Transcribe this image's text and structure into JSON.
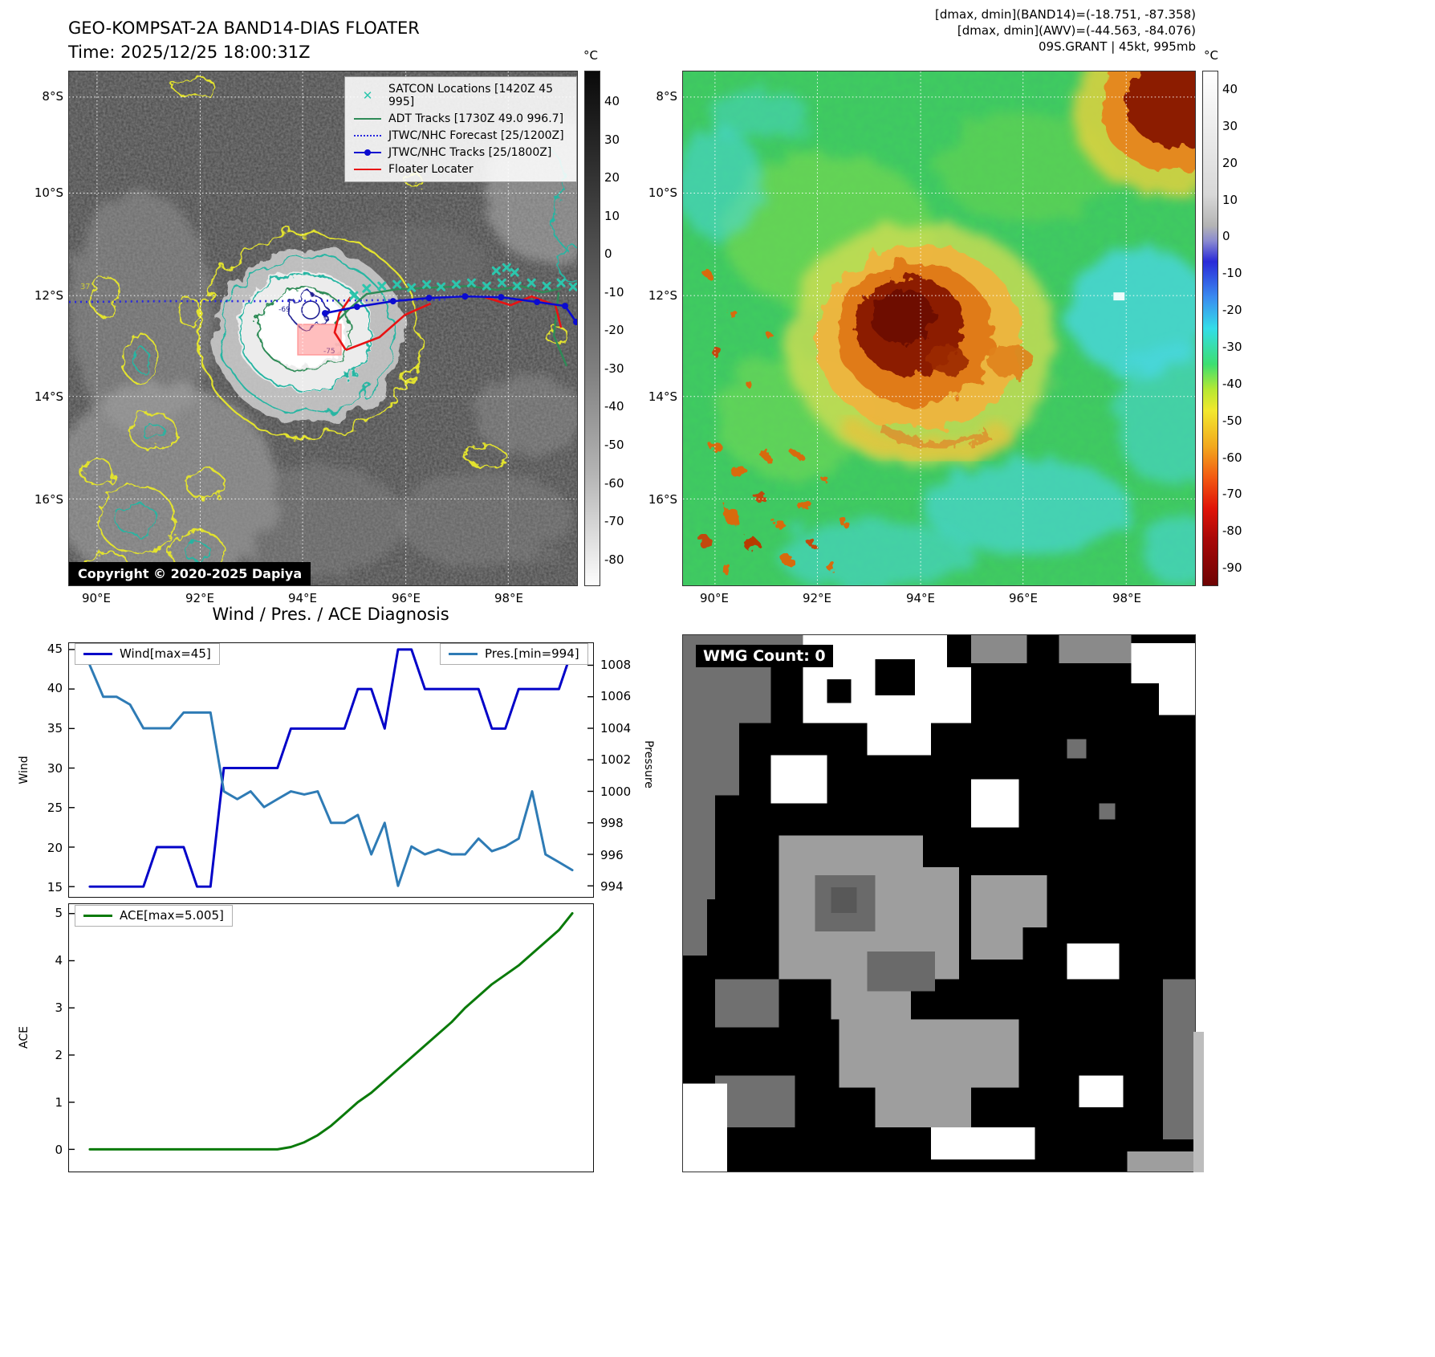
{
  "band14_panel": {
    "title_line1": "GEO-KOMPSAT-2A BAND14-DIAS FLOATER",
    "title_line2": "Time: 2025/12/25 18:00:31Z",
    "copyright": "Copyright © 2020-2025 Dapiya",
    "colorbar_unit": "°C",
    "colorbar_ticks": [
      40,
      30,
      20,
      10,
      0,
      -10,
      -20,
      -30,
      -40,
      -50,
      -60,
      -70,
      -80
    ],
    "lat_ticks": [
      "8°S",
      "10°S",
      "12°S",
      "14°S",
      "16°S"
    ],
    "lon_ticks": [
      "90°E",
      "92°E",
      "94°E",
      "96°E",
      "98°E"
    ],
    "legend_items": [
      {
        "label": "SATCON Locations [1420Z 45 995]",
        "color": "#2cc6ad",
        "style": "x-marker"
      },
      {
        "label": "ADT Tracks [1730Z 49.0 996.7]",
        "color": "#2e8b57",
        "style": "solid"
      },
      {
        "label": "JTWC/NHC Forecast [25/1200Z]",
        "color": "#2727e0",
        "style": "dotted"
      },
      {
        "label": "JTWC/NHC Tracks [25/1800Z]",
        "color": "#0b0bd0",
        "style": "line-marker"
      },
      {
        "label": "Floater Locater",
        "color": "#e81212",
        "style": "solid"
      }
    ]
  },
  "awv_panel": {
    "header_lines": [
      "[dmax, dmin](BAND14)=(-18.751, -87.358)",
      "[dmax, dmin](AWV)=(-44.563, -84.076)",
      "09S.GRANT | 45kt, 995mb"
    ],
    "colorbar_unit": "°C",
    "colorbar_ticks": [
      40,
      30,
      20,
      10,
      0,
      -10,
      -20,
      -30,
      -40,
      -50,
      -60,
      -70,
      -80,
      -90
    ],
    "lat_ticks": [
      "8°S",
      "10°S",
      "12°S",
      "14°S",
      "16°S"
    ],
    "lon_ticks": [
      "90°E",
      "92°E",
      "94°E",
      "96°E",
      "98°E"
    ]
  },
  "wmg_panel": {
    "label": "WMG Count: 0"
  },
  "chart_data": [
    {
      "type": "line",
      "title": "Wind / Pres. / ACE Diagnosis",
      "legend_position": "top",
      "series": [
        {
          "name": "Wind[max=45]",
          "color": "#0202c8",
          "axis": "left",
          "values": [
            15,
            15,
            15,
            15,
            15,
            20,
            20,
            20,
            15,
            15,
            30,
            30,
            30,
            30,
            30,
            35,
            35,
            35,
            35,
            35,
            40,
            40,
            35,
            45,
            45,
            40,
            40,
            40,
            40,
            40,
            35,
            35,
            40,
            40,
            40,
            40,
            45
          ]
        },
        {
          "name": "Pres.[min=994]",
          "color": "#2e7bb5",
          "axis": "right",
          "values": [
            1008,
            1006,
            1006,
            1005.5,
            1004,
            1004,
            1004,
            1005,
            1005,
            1005,
            1000,
            999.5,
            1000,
            999,
            999.5,
            1000,
            999.8,
            1000,
            998,
            998,
            998.5,
            996,
            998,
            994,
            996.5,
            996,
            996.3,
            996,
            996,
            997,
            996.2,
            996.5,
            997,
            1000,
            996,
            995.5,
            995
          ]
        }
      ],
      "left_axis": {
        "label": "Wind",
        "ticks": [
          15,
          20,
          25,
          30,
          35,
          40,
          45
        ],
        "lim": [
          13.7,
          45.8
        ]
      },
      "right_axis": {
        "label": "Pressure",
        "ticks": [
          994,
          996,
          998,
          1000,
          1002,
          1004,
          1006,
          1008
        ],
        "lim": [
          993.3,
          1009.4
        ]
      }
    },
    {
      "type": "line",
      "series": [
        {
          "name": "ACE[max=5.005]",
          "color": "#0a7a0a",
          "axis": "left",
          "values": [
            0,
            0,
            0,
            0,
            0,
            0,
            0,
            0,
            0,
            0,
            0,
            0,
            0,
            0,
            0,
            0.05,
            0.15,
            0.3,
            0.5,
            0.75,
            1.0,
            1.2,
            1.45,
            1.7,
            1.95,
            2.2,
            2.45,
            2.7,
            3.0,
            3.25,
            3.5,
            3.7,
            3.9,
            4.15,
            4.4,
            4.65,
            5.005
          ]
        }
      ],
      "left_axis": {
        "label": "ACE",
        "ticks": [
          0,
          1,
          2,
          3,
          4,
          5
        ],
        "lim": [
          -0.47,
          5.2
        ]
      }
    }
  ]
}
